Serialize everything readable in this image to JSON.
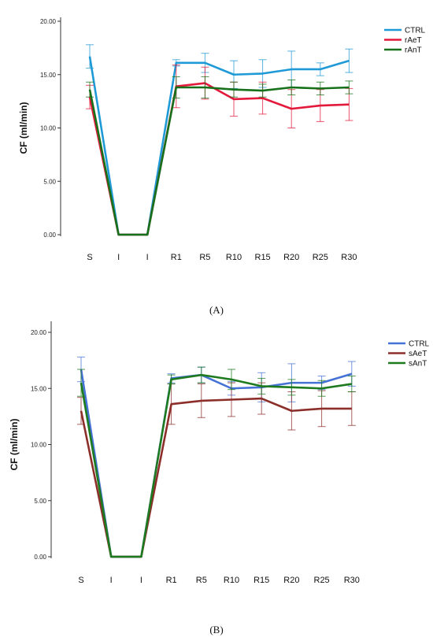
{
  "chart_data": [
    {
      "type": "line",
      "panel_label": "(A)",
      "ylabel": "CF (ml/min)",
      "ylim": [
        0,
        20
      ],
      "yticks": [
        "0.00",
        "5.00",
        "10.00",
        "15.00",
        "20.00"
      ],
      "categories": [
        "S",
        "I",
        "I",
        "R1",
        "R5",
        "R10",
        "R15",
        "R20",
        "R25",
        "R30"
      ],
      "grid": false,
      "legend_position": "top-right",
      "series": [
        {
          "name": "CTRL",
          "color": "#1f9ad6",
          "values": [
            16.7,
            0,
            0,
            16.1,
            16.1,
            15.0,
            15.1,
            15.5,
            15.5,
            16.3
          ],
          "errors": [
            1.1,
            0,
            0,
            0.3,
            0.9,
            1.3,
            1.3,
            1.7,
            0.6,
            1.1
          ]
        },
        {
          "name": "rAeT",
          "color": "#e3193b",
          "values": [
            12.9,
            0,
            0,
            13.9,
            14.2,
            12.7,
            12.8,
            11.8,
            12.1,
            12.2
          ],
          "errors": [
            1.1,
            0,
            0,
            2.0,
            1.5,
            1.6,
            1.5,
            1.8,
            1.5,
            1.5
          ]
        },
        {
          "name": "rAnT",
          "color": "#17711a",
          "values": [
            13.6,
            0,
            0,
            13.8,
            13.8,
            13.6,
            13.5,
            13.8,
            13.7,
            13.8
          ],
          "errors": [
            0.7,
            0,
            0,
            1.0,
            1.0,
            0.7,
            0.6,
            0.7,
            0.6,
            0.6
          ]
        }
      ]
    },
    {
      "type": "line",
      "panel_label": "(B)",
      "ylabel": "CF (ml/min)",
      "ylim": [
        0,
        20
      ],
      "yticks": [
        "0.00",
        "5.00",
        "10.00",
        "15.00",
        "20.00"
      ],
      "categories": [
        "S",
        "I",
        "I",
        "R1",
        "R5",
        "R10",
        "R15",
        "R20",
        "R25",
        "R30"
      ],
      "grid": false,
      "legend_position": "top-right",
      "series": [
        {
          "name": "CTRL",
          "color": "#4472d6",
          "values": [
            16.7,
            0,
            0,
            15.9,
            16.2,
            15.0,
            15.1,
            15.5,
            15.5,
            16.3
          ],
          "errors": [
            1.1,
            0,
            0,
            0.4,
            0.7,
            0.6,
            1.3,
            1.7,
            0.6,
            1.1
          ]
        },
        {
          "name": "sAeT",
          "color": "#8c2f2b",
          "values": [
            13.0,
            0,
            0,
            13.6,
            13.9,
            14.0,
            14.1,
            13.0,
            13.2,
            13.2
          ],
          "errors": [
            1.2,
            0,
            0,
            1.8,
            1.5,
            1.5,
            1.4,
            1.7,
            1.6,
            1.5
          ]
        },
        {
          "name": "sAnT",
          "color": "#1e7a1e",
          "values": [
            15.5,
            0,
            0,
            15.8,
            16.2,
            15.8,
            15.2,
            15.1,
            15.0,
            15.4
          ],
          "errors": [
            1.2,
            0,
            0,
            0.4,
            0.7,
            0.9,
            0.7,
            0.7,
            0.7,
            0.7
          ]
        }
      ]
    }
  ]
}
